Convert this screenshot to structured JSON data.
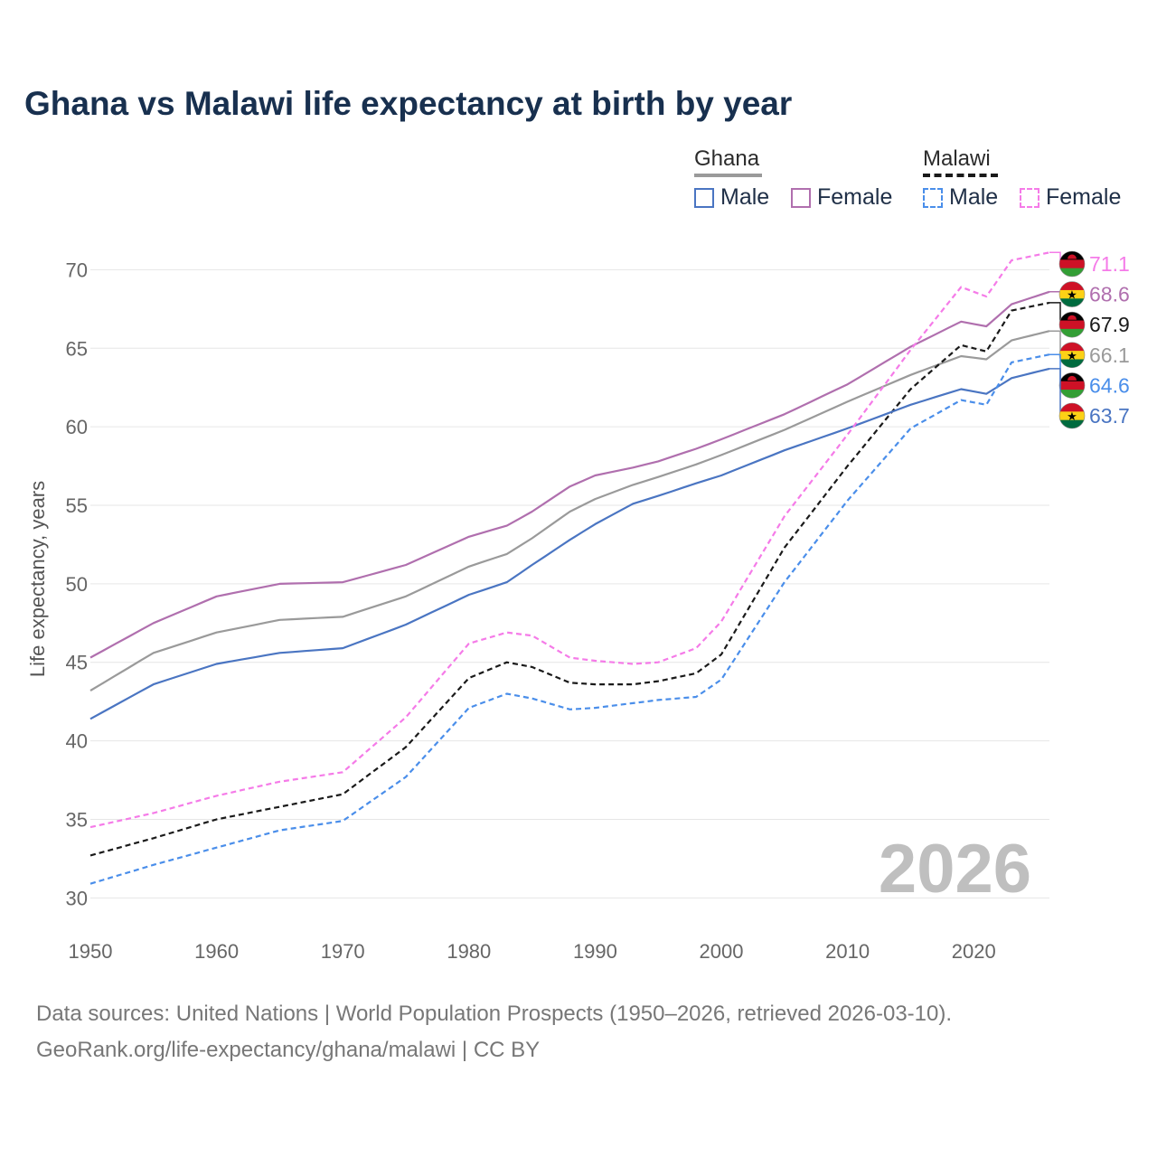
{
  "title": "Ghana vs Malawi life expectancy at birth by year",
  "legend": {
    "ghana": {
      "label": "Ghana",
      "male": "Male",
      "female": "Female"
    },
    "malawi": {
      "label": "Malawi",
      "male": "Male",
      "female": "Female"
    }
  },
  "colors": {
    "ghana_total": "#9a9a9a",
    "ghana_male": "#4a75c2",
    "ghana_female": "#b06fae",
    "malawi_total": "#1a1a1a",
    "malawi_male": "#4a8eea",
    "malawi_female": "#f57be8",
    "grid": "#e6e6e6",
    "ghana_flag": [
      "#ce1126",
      "#fcd116",
      "#006b3f"
    ],
    "malawi_flag": [
      "#000000",
      "#ce1126",
      "#339e35"
    ]
  },
  "year_watermark": "2026",
  "footer": {
    "line1": "Data sources: United Nations | World Population Prospects (1950–2026, retrieved 2026-03-10).",
    "line2": "GeoRank.org/life-expectancy/ghana/malawi | CC BY"
  },
  "chart_data": {
    "type": "line",
    "title": "Ghana vs Malawi life expectancy at birth by year",
    "xlabel": "",
    "ylabel": "Life expectancy, years",
    "xlim": [
      1950,
      2026
    ],
    "ylim": [
      29.5,
      72.5
    ],
    "xticks": [
      1950,
      1960,
      1970,
      1980,
      1990,
      2000,
      2010,
      2020
    ],
    "yticks": [
      30,
      35,
      40,
      45,
      50,
      55,
      60,
      65,
      70
    ],
    "grid": true,
    "legend_position": "top-right",
    "x_knots": [
      1950,
      1955,
      1960,
      1965,
      1970,
      1975,
      1980,
      1983,
      1985,
      1988,
      1990,
      1993,
      1995,
      1998,
      2000,
      2005,
      2010,
      2015,
      2019,
      2021,
      2023,
      2026
    ],
    "series": [
      {
        "key": "malawi_female",
        "name": "Malawi Female",
        "style": "dashed",
        "flag": "malawi",
        "end_label": "71.1",
        "values": [
          34.5,
          35.4,
          36.5,
          37.4,
          38.0,
          41.5,
          46.2,
          46.9,
          46.7,
          45.3,
          45.1,
          44.9,
          45.0,
          45.9,
          47.6,
          54.3,
          59.5,
          64.9,
          68.9,
          68.3,
          70.6,
          71.1
        ]
      },
      {
        "key": "ghana_female",
        "name": "Ghana Female",
        "style": "solid",
        "flag": "ghana",
        "end_label": "68.6",
        "values": [
          45.3,
          47.5,
          49.2,
          50.0,
          50.1,
          51.2,
          53.0,
          53.7,
          54.6,
          56.2,
          56.9,
          57.4,
          57.8,
          58.6,
          59.2,
          60.8,
          62.7,
          65.1,
          66.7,
          66.4,
          67.8,
          68.6
        ]
      },
      {
        "key": "malawi_total",
        "name": "Malawi",
        "style": "dashed",
        "flag": "malawi",
        "end_label": "67.9",
        "values": [
          32.7,
          33.8,
          35.0,
          35.8,
          36.6,
          39.6,
          44.0,
          45.0,
          44.7,
          43.7,
          43.6,
          43.6,
          43.8,
          44.3,
          45.5,
          52.3,
          57.5,
          62.4,
          65.2,
          64.8,
          67.4,
          67.9
        ]
      },
      {
        "key": "ghana_total",
        "name": "Ghana",
        "style": "solid",
        "flag": "ghana",
        "end_label": "66.1",
        "values": [
          43.2,
          45.6,
          46.9,
          47.7,
          47.9,
          49.2,
          51.1,
          51.9,
          52.9,
          54.6,
          55.4,
          56.3,
          56.8,
          57.6,
          58.2,
          59.8,
          61.6,
          63.3,
          64.5,
          64.3,
          65.5,
          66.1
        ]
      },
      {
        "key": "malawi_male",
        "name": "Malawi Male",
        "style": "dashed",
        "flag": "malawi",
        "end_label": "64.6",
        "values": [
          30.9,
          32.1,
          33.2,
          34.3,
          34.9,
          37.7,
          42.1,
          43.0,
          42.7,
          42.0,
          42.1,
          42.4,
          42.6,
          42.8,
          43.9,
          50.1,
          55.3,
          59.9,
          61.7,
          61.4,
          64.1,
          64.6
        ]
      },
      {
        "key": "ghana_male",
        "name": "Ghana Male",
        "style": "solid",
        "flag": "ghana",
        "end_label": "63.7",
        "values": [
          41.4,
          43.6,
          44.9,
          45.6,
          45.9,
          47.4,
          49.3,
          50.1,
          51.2,
          52.8,
          53.8,
          55.1,
          55.6,
          56.4,
          56.9,
          58.5,
          59.9,
          61.4,
          62.4,
          62.1,
          63.1,
          63.7
        ]
      }
    ]
  }
}
